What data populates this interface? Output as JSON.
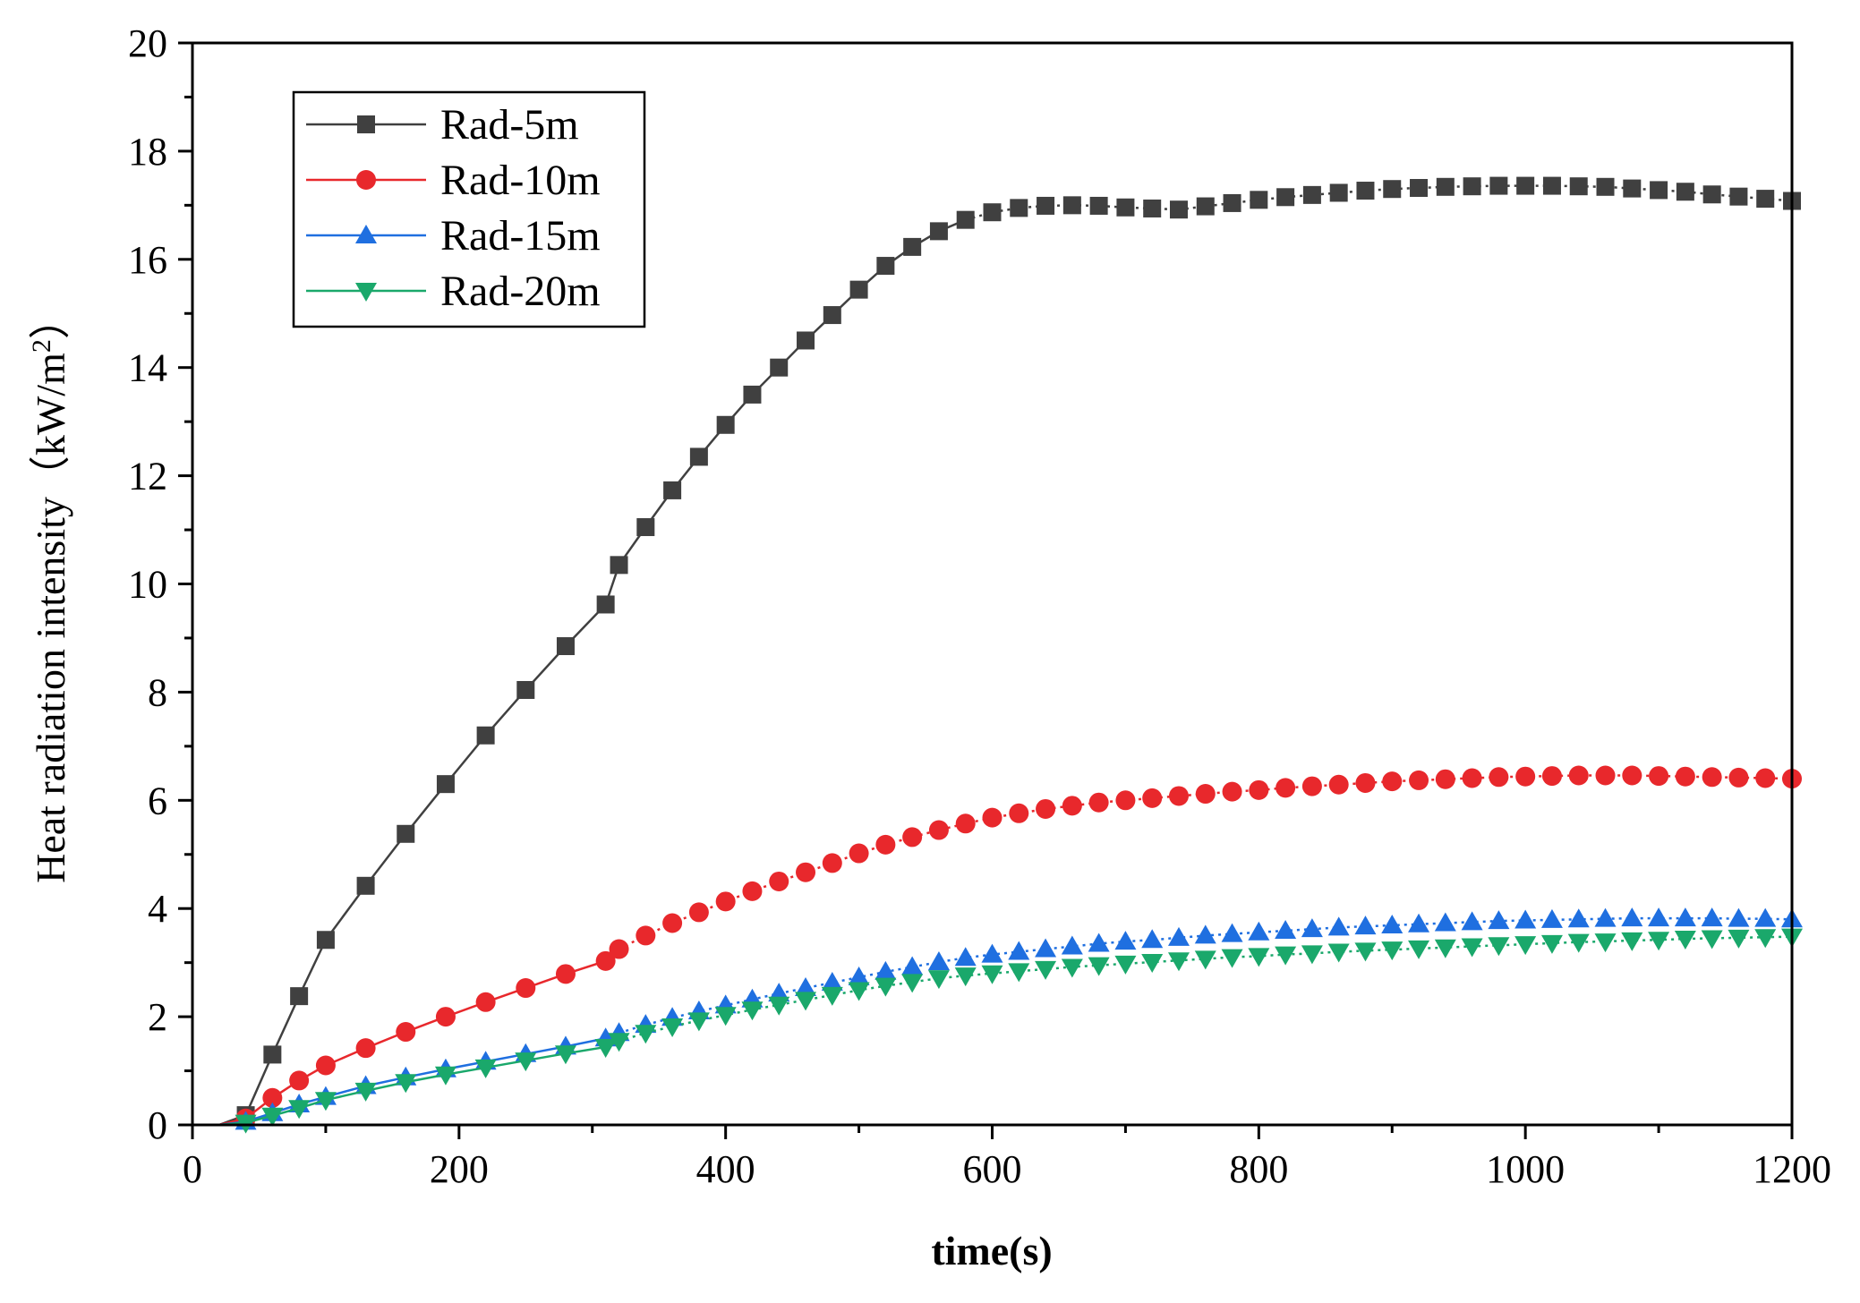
{
  "chart_data": {
    "type": "line",
    "title": "",
    "xlabel": "time(s)",
    "ylabel_main": "Heat radiation intensity",
    "ylabel_unit_open": "（kW/m",
    "ylabel_unit_sup": "2",
    "ylabel_unit_close": "）",
    "xlim": [
      0,
      1200
    ],
    "ylim": [
      0,
      20
    ],
    "x_ticks": [
      0,
      200,
      400,
      600,
      800,
      1000,
      1200
    ],
    "y_ticks": [
      0,
      2,
      4,
      6,
      8,
      10,
      12,
      14,
      16,
      18,
      20
    ],
    "grid": false,
    "legend_position": "top-left",
    "x": [
      20,
      40,
      60,
      80,
      100,
      130,
      160,
      190,
      220,
      250,
      280,
      310,
      320,
      340,
      360,
      380,
      400,
      420,
      440,
      460,
      480,
      500,
      520,
      540,
      560,
      580,
      600,
      620,
      640,
      660,
      680,
      700,
      720,
      740,
      760,
      780,
      800,
      820,
      840,
      860,
      880,
      900,
      920,
      940,
      960,
      980,
      1000,
      1020,
      1040,
      1060,
      1080,
      1100,
      1120,
      1140,
      1160,
      1180,
      1200
    ],
    "series": [
      {
        "name": "Rad-5m",
        "color": "#404040",
        "marker": "square",
        "values": [
          0,
          0.18,
          1.3,
          2.38,
          3.42,
          4.42,
          5.38,
          6.3,
          7.2,
          8.04,
          8.85,
          9.62,
          10.35,
          11.05,
          11.73,
          12.35,
          12.94,
          13.5,
          14.0,
          14.5,
          14.97,
          15.44,
          15.88,
          16.23,
          16.52,
          16.73,
          16.87,
          16.95,
          16.99,
          17.0,
          16.99,
          16.96,
          16.94,
          16.92,
          16.98,
          17.04,
          17.1,
          17.15,
          17.19,
          17.23,
          17.27,
          17.3,
          17.32,
          17.34,
          17.35,
          17.36,
          17.36,
          17.36,
          17.35,
          17.34,
          17.31,
          17.28,
          17.25,
          17.2,
          17.16,
          17.12,
          17.08
        ]
      },
      {
        "name": "Rad-10m",
        "color": "#e8282c",
        "marker": "circle",
        "values": [
          0,
          0.12,
          0.5,
          0.82,
          1.1,
          1.42,
          1.72,
          2.0,
          2.27,
          2.53,
          2.79,
          3.03,
          3.25,
          3.5,
          3.73,
          3.93,
          4.13,
          4.32,
          4.5,
          4.67,
          4.84,
          5.02,
          5.18,
          5.32,
          5.45,
          5.57,
          5.68,
          5.76,
          5.84,
          5.9,
          5.96,
          6.0,
          6.04,
          6.08,
          6.12,
          6.16,
          6.19,
          6.23,
          6.26,
          6.29,
          6.32,
          6.35,
          6.37,
          6.39,
          6.41,
          6.43,
          6.44,
          6.45,
          6.46,
          6.46,
          6.46,
          6.45,
          6.44,
          6.43,
          6.42,
          6.41,
          6.4
        ]
      },
      {
        "name": "Rad-15m",
        "color": "#1f6fe0",
        "marker": "triangle-up",
        "values": [
          0,
          0.06,
          0.22,
          0.38,
          0.52,
          0.72,
          0.88,
          1.03,
          1.17,
          1.31,
          1.45,
          1.6,
          1.7,
          1.85,
          1.98,
          2.1,
          2.21,
          2.32,
          2.43,
          2.53,
          2.63,
          2.73,
          2.83,
          2.92,
          3.01,
          3.09,
          3.15,
          3.2,
          3.25,
          3.3,
          3.35,
          3.39,
          3.42,
          3.46,
          3.5,
          3.53,
          3.56,
          3.59,
          3.62,
          3.65,
          3.67,
          3.69,
          3.71,
          3.73,
          3.75,
          3.77,
          3.78,
          3.79,
          3.8,
          3.81,
          3.82,
          3.82,
          3.82,
          3.82,
          3.81,
          3.81,
          3.8
        ]
      },
      {
        "name": "Rad-20m",
        "color": "#1aa86b",
        "marker": "triangle-down",
        "values": [
          0,
          0.04,
          0.17,
          0.31,
          0.46,
          0.63,
          0.79,
          0.93,
          1.06,
          1.19,
          1.32,
          1.44,
          1.55,
          1.7,
          1.82,
          1.93,
          2.03,
          2.13,
          2.22,
          2.31,
          2.4,
          2.49,
          2.57,
          2.64,
          2.71,
          2.76,
          2.8,
          2.84,
          2.88,
          2.92,
          2.95,
          2.98,
          3.01,
          3.04,
          3.07,
          3.1,
          3.12,
          3.15,
          3.17,
          3.2,
          3.22,
          3.24,
          3.26,
          3.28,
          3.3,
          3.32,
          3.34,
          3.36,
          3.38,
          3.39,
          3.41,
          3.42,
          3.44,
          3.45,
          3.46,
          3.47,
          3.48
        ]
      }
    ]
  }
}
